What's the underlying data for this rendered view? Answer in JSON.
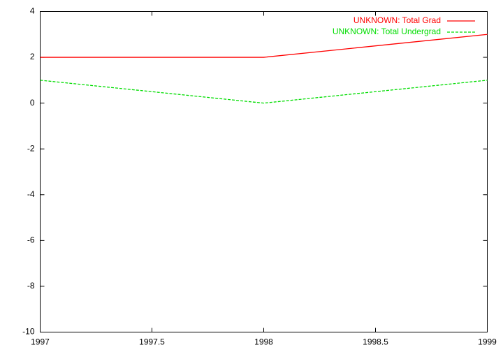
{
  "chart_data": {
    "type": "line",
    "x": [
      1997,
      1998,
      1999
    ],
    "series": [
      {
        "name": "UNKNOWN: Total Grad",
        "color": "#ff0000",
        "values": [
          2,
          2,
          3
        ],
        "dashed": false
      },
      {
        "name": "UNKNOWN: Total Undergrad",
        "color": "#00dd00",
        "values": [
          1,
          0,
          1
        ],
        "dashed": true
      }
    ],
    "xlim": [
      1997,
      1999
    ],
    "xticks": [
      1997,
      1997.5,
      1998,
      1998.5,
      1999
    ],
    "ylim": [
      -10,
      4
    ],
    "yticks": [
      -10,
      -8,
      -6,
      -4,
      -2,
      0,
      2,
      4
    ],
    "grid": false,
    "legend": "top-right"
  }
}
